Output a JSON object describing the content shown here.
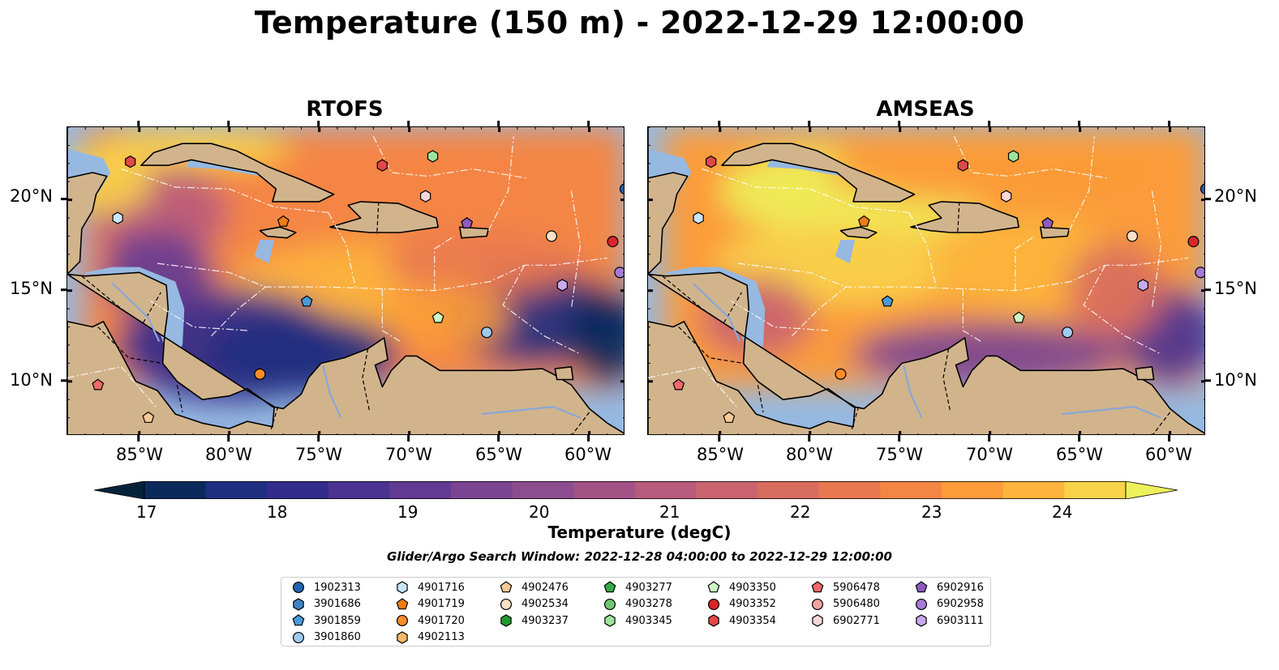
{
  "title": "Temperature (150 m) - 2022-12-29 12:00:00",
  "panels": [
    {
      "title": "RTOFS"
    },
    {
      "title": "AMSEAS"
    }
  ],
  "map": {
    "lon_labels": [
      "85°W",
      "80°W",
      "75°W",
      "70°W",
      "65°W",
      "60°W"
    ],
    "lat_labels": [
      "20°N",
      "15°N",
      "10°N"
    ],
    "extent": {
      "lon_min": -89,
      "lon_max": -58,
      "lat_min": 7,
      "lat_max": 24
    },
    "land_color": "#d2b48c",
    "water_color": "#96b9e2"
  },
  "colorbar": {
    "title": "Temperature (degC)",
    "ticks": [
      "17",
      "18",
      "19",
      "20",
      "21",
      "22",
      "23",
      "24"
    ],
    "colors": [
      "#04233a",
      "#0b2a5b",
      "#1e2f80",
      "#332c8c",
      "#4b3394",
      "#633a92",
      "#7a4492",
      "#8d4c8f",
      "#a35286",
      "#b85a7c",
      "#c9646f",
      "#d86c5f",
      "#e97850",
      "#f48645",
      "#fb9b3a",
      "#fcb43c",
      "#f8d34a",
      "#eef05a"
    ]
  },
  "search_window": "Glider/Argo Search Window: 2022-12-28 04:00:00 to 2022-12-29 12:00:00",
  "legend": [
    {
      "id": "1902313",
      "marker": "circle",
      "color": "#1f63b4"
    },
    {
      "id": "3901686",
      "marker": "hexagon",
      "color": "#3b86c6"
    },
    {
      "id": "3901859",
      "marker": "pentagon",
      "color": "#4a9ad8"
    },
    {
      "id": "3901860",
      "marker": "circle",
      "color": "#9ecaf0"
    },
    {
      "id": "4901716",
      "marker": "hexagon",
      "color": "#c8e6fb"
    },
    {
      "id": "4901719",
      "marker": "pentagon",
      "color": "#f07c14"
    },
    {
      "id": "4901720",
      "marker": "circle",
      "color": "#fb8c2a"
    },
    {
      "id": "4902113",
      "marker": "hexagon",
      "color": "#fdb868"
    },
    {
      "id": "4902476",
      "marker": "pentagon",
      "color": "#fdc897"
    },
    {
      "id": "4902534",
      "marker": "circle",
      "color": "#fde0c5"
    },
    {
      "id": "4903237",
      "marker": "hexagon",
      "color": "#1f9a2c"
    },
    {
      "id": "4903277",
      "marker": "pentagon",
      "color": "#38a944"
    },
    {
      "id": "4903278",
      "marker": "circle",
      "color": "#72c472"
    },
    {
      "id": "4903345",
      "marker": "hexagon",
      "color": "#9fe39a"
    },
    {
      "id": "4903350",
      "marker": "pentagon",
      "color": "#cdf7c6"
    },
    {
      "id": "4903352",
      "marker": "circle",
      "color": "#d8262a"
    },
    {
      "id": "4903354",
      "marker": "hexagon",
      "color": "#e04848"
    },
    {
      "id": "5906478",
      "marker": "pentagon",
      "color": "#f06a6a"
    },
    {
      "id": "5906480",
      "marker": "circle",
      "color": "#f5a3a0"
    },
    {
      "id": "6902771",
      "marker": "hexagon",
      "color": "#fcd6d6"
    },
    {
      "id": "6902916",
      "marker": "pentagon",
      "color": "#8e5bc0"
    },
    {
      "id": "6902958",
      "marker": "circle",
      "color": "#a57bd4"
    },
    {
      "id": "6903111",
      "marker": "hexagon",
      "color": "#c9a9ec"
    }
  ],
  "floats": [
    {
      "id": "4903354",
      "lon": -85.5,
      "lat": 22.1
    },
    {
      "id": "4901716",
      "lon": -86.2,
      "lat": 19.0
    },
    {
      "id": "5906478",
      "lon": -87.3,
      "lat": 9.8
    },
    {
      "id": "4902476",
      "lon": -84.5,
      "lat": 8.0
    },
    {
      "id": "4901719",
      "lon": -77.0,
      "lat": 18.8
    },
    {
      "id": "3901859",
      "lon": -75.7,
      "lat": 14.4
    },
    {
      "id": "4901720",
      "lon": -78.3,
      "lat": 10.4
    },
    {
      "id": "4903354",
      "lon": -71.5,
      "lat": 21.9
    },
    {
      "id": "4903345",
      "lon": -68.7,
      "lat": 22.4
    },
    {
      "id": "6902771",
      "lon": -69.1,
      "lat": 20.2
    },
    {
      "id": "6902916",
      "lon": -66.8,
      "lat": 18.7
    },
    {
      "id": "4903350",
      "lon": -68.4,
      "lat": 13.5
    },
    {
      "id": "3901860",
      "lon": -65.7,
      "lat": 12.7
    },
    {
      "id": "4902534",
      "lon": -62.1,
      "lat": 18.0
    },
    {
      "id": "6903111",
      "lon": -61.5,
      "lat": 15.3
    },
    {
      "id": "6902958",
      "lon": -58.3,
      "lat": 16.0
    },
    {
      "id": "4903352",
      "lon": -58.7,
      "lat": 17.7
    },
    {
      "id": "1902313",
      "lon": -58.0,
      "lat": 20.6
    }
  ]
}
